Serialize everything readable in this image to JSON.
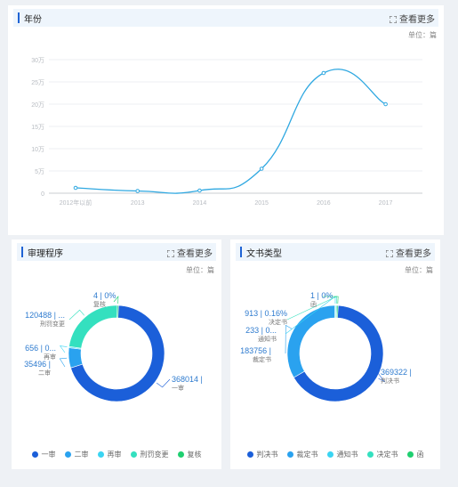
{
  "colors": {
    "accent": "#1f63d4",
    "line": "#2fa8e1",
    "header_bg": "#eef5fc"
  },
  "year_panel": {
    "title": "年份",
    "more_label": "查看更多",
    "unit": "单位：篇",
    "chart_data": {
      "type": "line",
      "categories": [
        "2012年以前",
        "2013",
        "2014",
        "2015",
        "2016",
        "2017"
      ],
      "series": [
        {
          "values": [
            12000,
            5000,
            6000,
            55000,
            270000,
            200000
          ]
        }
      ],
      "y_ticks": [
        "0",
        "5万",
        "10万",
        "15万",
        "20万",
        "25万",
        "30万"
      ],
      "ylim": [
        0,
        300000
      ],
      "grid": true,
      "smooth": true
    }
  },
  "procedure_panel": {
    "title": "审理程序",
    "more_label": "查看更多",
    "unit": "单位：篇",
    "chart_data": {
      "type": "pie",
      "donut": true,
      "slices": [
        {
          "name": "一审",
          "value": 368014,
          "label_value": "368014 |",
          "label_name": "一审",
          "color": "#1b5fd9"
        },
        {
          "name": "二审",
          "value": 35496,
          "label_value": "35496 |",
          "label_name": "二审",
          "color": "#2aa2ef"
        },
        {
          "name": "再审",
          "value": 656,
          "label_value": "656 | 0...",
          "label_name": "再审",
          "color": "#3ad4f2"
        },
        {
          "name": "刑罚变更",
          "value": 120488,
          "label_value": "120488 | ...",
          "label_name": "刑罚变更",
          "color": "#34e0bf"
        },
        {
          "name": "复核",
          "value": 4,
          "label_value": "4 | 0%",
          "label_name": "复核",
          "color": "#1fcf70"
        }
      ],
      "legend": [
        "一审",
        "二审",
        "再审",
        "刑罚变更",
        "复核"
      ],
      "legend_position": "bottom"
    }
  },
  "doctype_panel": {
    "title": "文书类型",
    "more_label": "查看更多",
    "unit": "单位：篇",
    "chart_data": {
      "type": "pie",
      "donut": true,
      "slices": [
        {
          "name": "判决书",
          "value": 369322,
          "label_value": "369322 |",
          "label_name": "判决书",
          "color": "#1b5fd9"
        },
        {
          "name": "裁定书",
          "value": 183756,
          "label_value": "183756 |",
          "label_name": "裁定书",
          "color": "#2aa2ef"
        },
        {
          "name": "通知书",
          "value": 233,
          "label_value": "233 | 0...",
          "label_name": "通知书",
          "color": "#3ad4f2"
        },
        {
          "name": "决定书",
          "value": 913,
          "label_value": "913 | 0.16%",
          "label_name": "决定书",
          "color": "#34e0bf"
        },
        {
          "name": "函",
          "value": 1,
          "label_value": "1 | 0%",
          "label_name": "函",
          "color": "#1fcf70"
        }
      ],
      "legend": [
        "判决书",
        "裁定书",
        "通知书",
        "决定书",
        "函"
      ],
      "legend_position": "bottom"
    }
  }
}
